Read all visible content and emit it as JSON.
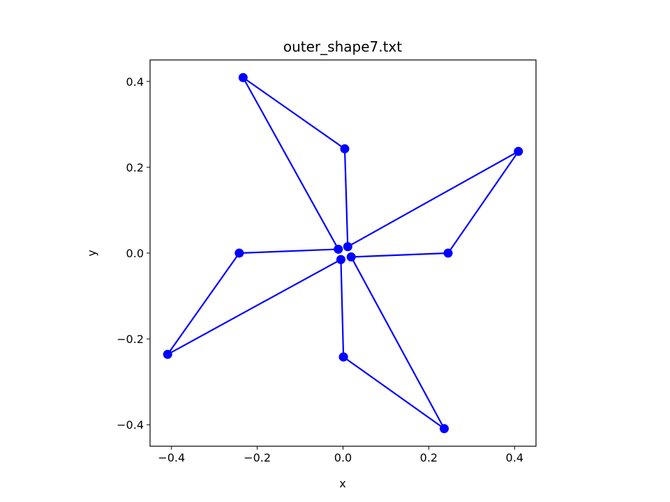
{
  "chart_data": {
    "type": "line",
    "title": "outer_shape7.txt",
    "xlabel": "x",
    "ylabel": "y",
    "xlim": [
      -0.45,
      0.45
    ],
    "ylim": [
      -0.45,
      0.45
    ],
    "x_ticks": [
      -0.4,
      -0.2,
      0.0,
      0.2,
      0.4
    ],
    "x_tick_labels": [
      "−0.4",
      "−0.2",
      "0.0",
      "0.2",
      "0.4"
    ],
    "y_ticks": [
      -0.4,
      -0.2,
      0.0,
      0.2,
      0.4
    ],
    "y_tick_labels": [
      "−0.4",
      "−0.2",
      "0.0",
      "0.2",
      "0.4"
    ],
    "grid": false,
    "color": "#0000ff",
    "marker": "circle",
    "series": [
      {
        "x": [
          0.001,
          0.236,
          0.019,
          0.245,
          0.409,
          0.011,
          0.004,
          -0.233,
          -0.011,
          -0.242,
          -0.409,
          -0.005,
          0.001
        ],
        "y": [
          -0.242,
          -0.409,
          -0.009,
          0.0,
          0.237,
          0.015,
          0.243,
          0.409,
          0.009,
          0.0,
          -0.236,
          -0.015,
          -0.242
        ]
      }
    ]
  }
}
